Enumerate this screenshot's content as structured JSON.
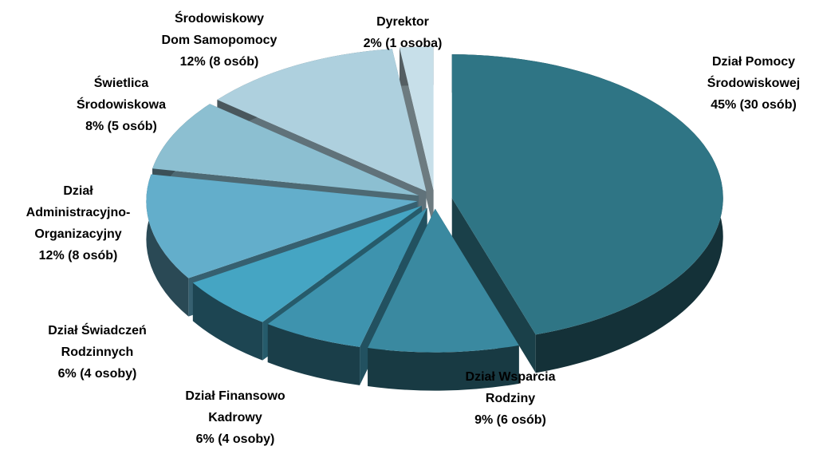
{
  "chart_data": {
    "type": "pie",
    "categories": [
      [
        "Dział Pomocy",
        "Środowiskowej"
      ],
      [
        "Dział Wsparcia",
        "Rodziny"
      ],
      [
        "Dział Finansowo",
        "Kadrowy"
      ],
      [
        "Dział Świadczeń",
        "Rodzinnych"
      ],
      [
        "Dział",
        "Administracyjno-",
        "Organizacyjny"
      ],
      [
        "Świetlica",
        "Środowiskowa"
      ],
      [
        "Środowiskowy",
        "Dom Samopomocy"
      ],
      [
        "Dyrektor"
      ]
    ],
    "values": [
      45,
      9,
      6,
      6,
      12,
      8,
      12,
      2
    ],
    "value_labels": [
      "45% (30 osób)",
      "9% (6 osób)",
      "6% (4 osoby)",
      "6% (4 osoby)",
      "12% (8 osób)",
      "8% (5 osób)",
      "12% (8 osób)",
      "2% (1 osoba)"
    ],
    "colors": [
      "#2f7585",
      "#3a89a0",
      "#3e93ae",
      "#45a5c3",
      "#63aecb",
      "#8cbfd1",
      "#aed0de",
      "#c7dfe9"
    ]
  }
}
